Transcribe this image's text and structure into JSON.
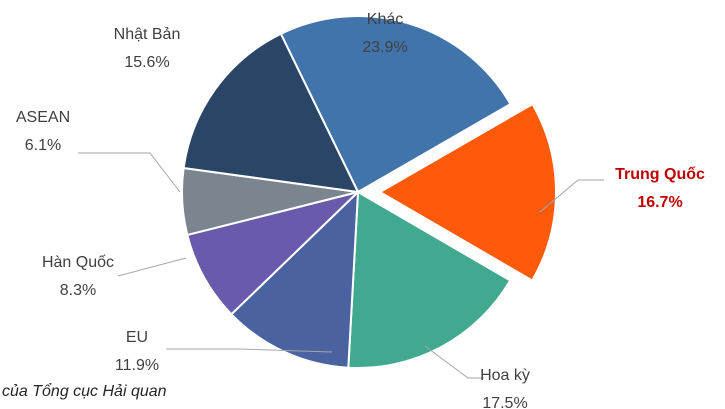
{
  "chart_data": {
    "type": "pie",
    "categories": [
      "Khác",
      "Trung Quốc",
      "Hoa kỳ",
      "EU",
      "Hàn Quốc",
      "ASEAN",
      "Nhật Bản"
    ],
    "values": [
      23.9,
      16.7,
      17.5,
      11.9,
      8.3,
      6.1,
      15.6
    ],
    "value_labels": [
      "23.9%",
      "16.7%",
      "17.5%",
      "11.9%",
      "8.3%",
      "6.1%",
      "15.6%"
    ],
    "colors": [
      "#4174ab",
      "#ff5a0a",
      "#41a98f",
      "#4a62a0",
      "#6a5aab",
      "#7a8590",
      "#2a4566"
    ],
    "highlight": "Trung Quốc",
    "source": "của Tổng cục Hải quan"
  }
}
